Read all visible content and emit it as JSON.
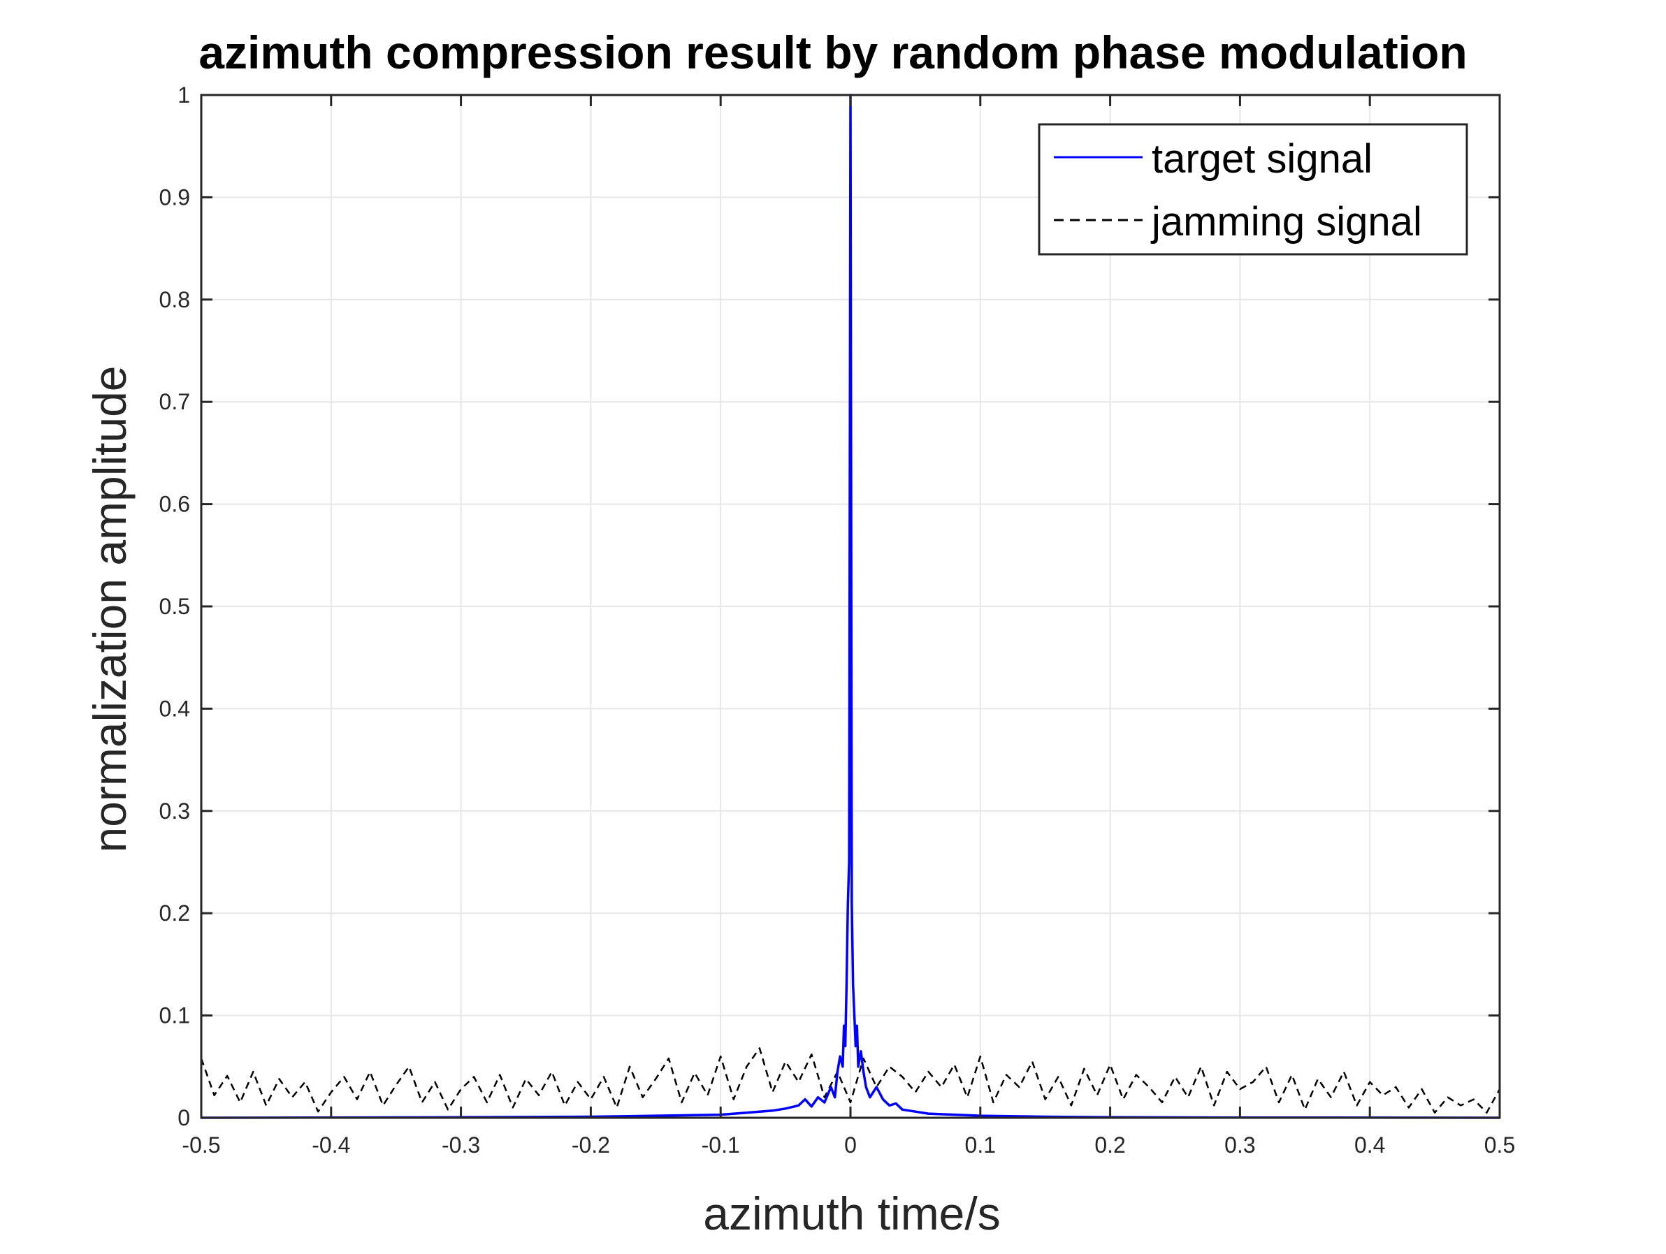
{
  "chart_data": {
    "type": "line",
    "title": "azimuth compression result by random phase modulation",
    "xlabel": "azimuth time/s",
    "ylabel": "normalization amplitude",
    "xlim": [
      -0.5,
      0.5
    ],
    "ylim": [
      0,
      1
    ],
    "x_ticks": [
      "-0.5",
      "-0.4",
      "-0.3",
      "-0.2",
      "-0.1",
      "0",
      "0.1",
      "0.2",
      "0.3",
      "0.4",
      "0.5"
    ],
    "y_ticks": [
      "0",
      "0.1",
      "0.2",
      "0.3",
      "0.4",
      "0.5",
      "0.6",
      "0.7",
      "0.8",
      "0.9",
      "1"
    ],
    "grid": true,
    "legend_position": "top-right",
    "series": [
      {
        "name": "target signal",
        "color": "#0000ff",
        "line_style": "solid",
        "x": [
          -0.5,
          -0.3,
          -0.2,
          -0.15,
          -0.1,
          -0.08,
          -0.06,
          -0.05,
          -0.04,
          -0.035,
          -0.03,
          -0.025,
          -0.02,
          -0.015,
          -0.012,
          -0.01,
          -0.008,
          -0.006,
          -0.005,
          -0.004,
          -0.003,
          -0.002,
          -0.001,
          0,
          0.001,
          0.002,
          0.003,
          0.004,
          0.005,
          0.006,
          0.008,
          0.01,
          0.012,
          0.015,
          0.02,
          0.025,
          0.03,
          0.035,
          0.04,
          0.05,
          0.06,
          0.08,
          0.1,
          0.15,
          0.2,
          0.3,
          0.5
        ],
        "y": [
          0.0,
          0.0005,
          0.001,
          0.002,
          0.003,
          0.005,
          0.007,
          0.009,
          0.012,
          0.018,
          0.011,
          0.02,
          0.015,
          0.03,
          0.02,
          0.045,
          0.06,
          0.05,
          0.09,
          0.07,
          0.13,
          0.21,
          0.25,
          1.0,
          0.21,
          0.13,
          0.1,
          0.07,
          0.09,
          0.05,
          0.065,
          0.045,
          0.03,
          0.02,
          0.03,
          0.018,
          0.012,
          0.014,
          0.008,
          0.006,
          0.004,
          0.003,
          0.002,
          0.001,
          0.0005,
          0.0002,
          0.0
        ]
      },
      {
        "name": "jamming signal",
        "color": "#000000",
        "line_style": "dashed",
        "x": [
          -0.5,
          -0.49,
          -0.48,
          -0.47,
          -0.46,
          -0.45,
          -0.44,
          -0.43,
          -0.42,
          -0.41,
          -0.4,
          -0.39,
          -0.38,
          -0.37,
          -0.36,
          -0.35,
          -0.34,
          -0.33,
          -0.32,
          -0.31,
          -0.3,
          -0.29,
          -0.28,
          -0.27,
          -0.26,
          -0.25,
          -0.24,
          -0.23,
          -0.22,
          -0.21,
          -0.2,
          -0.19,
          -0.18,
          -0.17,
          -0.16,
          -0.15,
          -0.14,
          -0.13,
          -0.12,
          -0.11,
          -0.1,
          -0.09,
          -0.08,
          -0.07,
          -0.06,
          -0.05,
          -0.04,
          -0.03,
          -0.02,
          -0.01,
          0.0,
          0.01,
          0.02,
          0.03,
          0.04,
          0.05,
          0.06,
          0.07,
          0.08,
          0.09,
          0.1,
          0.11,
          0.12,
          0.13,
          0.14,
          0.15,
          0.16,
          0.17,
          0.18,
          0.19,
          0.2,
          0.21,
          0.22,
          0.23,
          0.24,
          0.25,
          0.26,
          0.27,
          0.28,
          0.29,
          0.3,
          0.31,
          0.32,
          0.33,
          0.34,
          0.35,
          0.36,
          0.37,
          0.38,
          0.39,
          0.4,
          0.41,
          0.42,
          0.43,
          0.44,
          0.45,
          0.46,
          0.47,
          0.48,
          0.49,
          0.5
        ],
        "y": [
          0.058,
          0.022,
          0.041,
          0.015,
          0.045,
          0.012,
          0.038,
          0.02,
          0.035,
          0.006,
          0.025,
          0.04,
          0.018,
          0.045,
          0.012,
          0.032,
          0.05,
          0.015,
          0.035,
          0.008,
          0.028,
          0.04,
          0.015,
          0.042,
          0.01,
          0.038,
          0.022,
          0.045,
          0.012,
          0.035,
          0.018,
          0.04,
          0.01,
          0.05,
          0.02,
          0.038,
          0.058,
          0.015,
          0.044,
          0.022,
          0.06,
          0.018,
          0.05,
          0.068,
          0.025,
          0.055,
          0.035,
          0.062,
          0.02,
          0.045,
          0.015,
          0.058,
          0.03,
          0.05,
          0.04,
          0.025,
          0.045,
          0.03,
          0.052,
          0.02,
          0.06,
          0.015,
          0.042,
          0.03,
          0.055,
          0.018,
          0.04,
          0.012,
          0.048,
          0.022,
          0.052,
          0.018,
          0.042,
          0.03,
          0.015,
          0.04,
          0.02,
          0.05,
          0.012,
          0.045,
          0.028,
          0.035,
          0.05,
          0.015,
          0.042,
          0.008,
          0.038,
          0.02,
          0.045,
          0.012,
          0.035,
          0.022,
          0.03,
          0.01,
          0.028,
          0.005,
          0.02,
          0.012,
          0.018,
          0.005,
          0.028
        ]
      }
    ]
  }
}
